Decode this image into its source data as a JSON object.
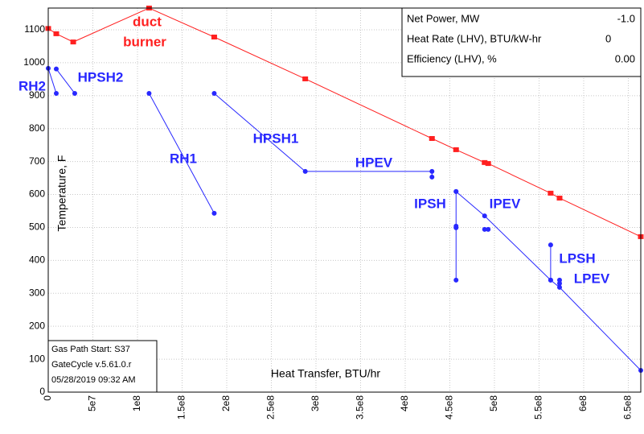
{
  "chart_data": {
    "type": "line",
    "ylabel": "Temperature, F",
    "xlabel": "Heat Transfer, BTU/hr",
    "xlim": [
      0,
      664000000
    ],
    "ylim": [
      0,
      1166
    ],
    "xticks": [
      0,
      {
        "value": 50000000,
        "label": "5e7"
      },
      {
        "value": 100000000,
        "label": "1e8"
      },
      {
        "value": 150000000,
        "label": "1.5e8"
      },
      {
        "value": 200000000,
        "label": "2e8"
      },
      {
        "value": 250000000,
        "label": "2.5e8"
      },
      {
        "value": 300000000,
        "label": "3e8"
      },
      {
        "value": 350000000,
        "label": "3.5e8"
      },
      {
        "value": 400000000,
        "label": "4e8"
      },
      {
        "value": 450000000,
        "label": "4.5e8"
      },
      {
        "value": 500000000,
        "label": "5e8"
      },
      {
        "value": 550000000,
        "label": "5.5e8"
      },
      {
        "value": 600000000,
        "label": "6e8"
      },
      {
        "value": 650000000,
        "label": "6.5e8"
      }
    ],
    "yticks": [
      0,
      100,
      200,
      300,
      400,
      500,
      600,
      700,
      800,
      900,
      1000,
      1100
    ],
    "grid": true,
    "series": [
      {
        "color": "#ff2020",
        "marker": "square",
        "x": [
          0,
          9000000,
          28000000,
          113000000,
          186000000,
          288000000,
          430000000,
          457000000,
          489000000,
          493000000,
          563000000,
          573000000,
          664000000
        ],
        "values": [
          1104,
          1088,
          1063,
          1166,
          1078,
          951,
          770,
          736,
          697,
          694,
          604,
          589,
          472
        ]
      },
      {
        "color": "#2828ff",
        "marker": "circle",
        "x": [
          0,
          9000000,
          null,
          9000000,
          29700000,
          null,
          113000000,
          186000000,
          null,
          186000000,
          288000000,
          430000000,
          430000000,
          null,
          457000000,
          457000000,
          457000000,
          457000000,
          null,
          457000000,
          489000000,
          563000000,
          573000000,
          664000000,
          null,
          489000000,
          493000000,
          null,
          563000000,
          563000000,
          null,
          573000000,
          573000000
        ],
        "values": [
          983,
          907,
          null,
          981,
          907,
          null,
          907,
          543,
          null,
          907,
          670,
          670,
          653,
          null,
          609,
          504,
          499,
          340,
          null,
          609,
          535,
          340,
          318,
          66,
          null,
          494,
          494,
          null,
          447,
          340,
          null,
          340,
          330
        ]
      }
    ],
    "annotations": [
      {
        "text": "duct",
        "color": "#ff2020"
      },
      {
        "text": "burner",
        "color": "#ff2020"
      },
      {
        "text": "RH2",
        "color": "#2828ff"
      },
      {
        "text": "HPSH2",
        "color": "#2828ff"
      },
      {
        "text": "RH1",
        "color": "#2828ff"
      },
      {
        "text": "HPSH1",
        "color": "#2828ff"
      },
      {
        "text": "HPEV",
        "color": "#2828ff"
      },
      {
        "text": "IPSH",
        "color": "#2828ff"
      },
      {
        "text": "IPEV",
        "color": "#2828ff"
      },
      {
        "text": "LPSH",
        "color": "#2828ff"
      },
      {
        "text": "LPEV",
        "color": "#2828ff"
      }
    ],
    "info": [
      {
        "label": "Net Power, MW",
        "value": "-1.0"
      },
      {
        "label": "Heat Rate (LHV), BTU/kW-hr",
        "value": "0"
      },
      {
        "label": "Efficiency (LHV), %",
        "value": "0.00"
      }
    ],
    "footer": [
      "Gas Path Start: S37",
      "GateCycle v.5.61.0.r",
      "05/28/2019 09:32 AM"
    ]
  }
}
